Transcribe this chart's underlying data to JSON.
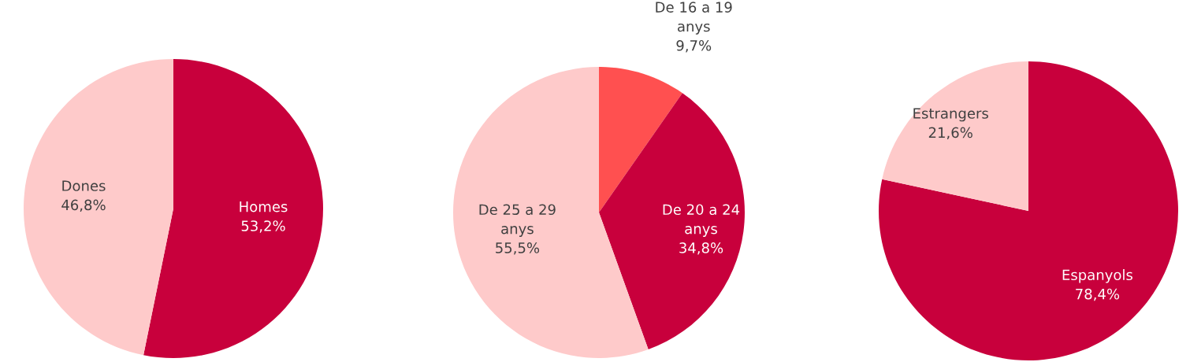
{
  "chart_data": [
    {
      "type": "pie",
      "categories": [
        "Homes",
        "Dones"
      ],
      "values": [
        53.2,
        46.8
      ],
      "value_labels": [
        "53,2%",
        "46,8%"
      ],
      "colors": [
        "#c8003c",
        "#fecaca"
      ]
    },
    {
      "type": "pie",
      "categories": [
        "De 16 a 19\nanys",
        "De 20 a 24\nanys",
        "De 25 a 29\nanys"
      ],
      "values": [
        9.7,
        34.8,
        55.5
      ],
      "value_labels": [
        "9,7%",
        "34,8%",
        "55,5%"
      ],
      "colors": [
        "#ff5050",
        "#c8003c",
        "#fecaca"
      ]
    },
    {
      "type": "pie",
      "categories": [
        "Espanyols",
        "Estrangers"
      ],
      "values": [
        78.4,
        21.6
      ],
      "value_labels": [
        "78,4%",
        "21,6%"
      ],
      "colors": [
        "#c8003c",
        "#fecaca"
      ]
    }
  ]
}
